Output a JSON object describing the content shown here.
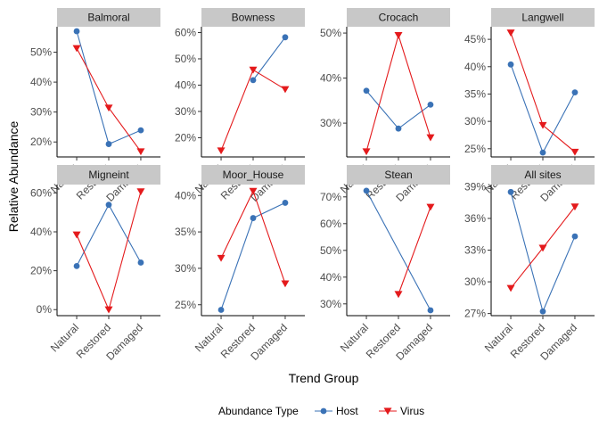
{
  "chart_data": {
    "type": "line",
    "layout": "facet grid, 2 rows x 4 columns, free y scales",
    "xlabel": "Trend Group",
    "ylabel": "Relative Abundance",
    "categories": [
      "Natural",
      "Restored",
      "Damaged"
    ],
    "legend": {
      "title": "Abundance Type",
      "position": "bottom",
      "entries": [
        {
          "name": "Host",
          "color": "#3a72b6",
          "marker": "circle"
        },
        {
          "name": "Virus",
          "color": "#e41a1c",
          "marker": "triangle-down"
        }
      ]
    },
    "facets": [
      {
        "title": "Balmoral",
        "ylim": [
          15,
          58.5
        ],
        "yticks": [
          20,
          30,
          40,
          50
        ],
        "ytick_labels": [
          "20%",
          "30%",
          "40%",
          "50%"
        ],
        "series": [
          {
            "name": "Host",
            "values": [
              57,
              19.3,
              23.9
            ]
          },
          {
            "name": "Virus",
            "values": [
              51.3,
              31.4,
              16.8
            ]
          }
        ]
      },
      {
        "title": "Bowness",
        "ylim": [
          12.7,
          62.2
        ],
        "yticks": [
          20,
          30,
          40,
          50,
          60
        ],
        "ytick_labels": [
          "20%",
          "30%",
          "40%",
          "50%",
          "60%"
        ],
        "series": [
          {
            "name": "Host",
            "values": [
              null,
              41.9,
              58.2
            ]
          },
          {
            "name": "Virus",
            "values": [
              15.1,
              45.8,
              38.4
            ]
          }
        ]
      },
      {
        "title": "Crocach",
        "ylim": [
          22.5,
          51.4
        ],
        "yticks": [
          30,
          40,
          50
        ],
        "ytick_labels": [
          "30%",
          "40%",
          "50%"
        ],
        "series": [
          {
            "name": "Host",
            "values": [
              37.2,
              28.8,
              34.1
            ]
          },
          {
            "name": "Virus",
            "values": [
              23.7,
              49.5,
              26.8
            ]
          }
        ]
      },
      {
        "title": "Langwell",
        "ylim": [
          23.5,
          47.3
        ],
        "yticks": [
          25,
          30,
          35,
          40,
          45
        ],
        "ytick_labels": [
          "25%",
          "30%",
          "35%",
          "40%",
          "45%"
        ],
        "series": [
          {
            "name": "Host",
            "values": [
              40.4,
              24.3,
              35.3
            ]
          },
          {
            "name": "Virus",
            "values": [
              46.2,
              29.3,
              24.4
            ]
          }
        ]
      },
      {
        "title": "Migneint",
        "ylim": [
          -3.1,
          64.3
        ],
        "yticks": [
          0,
          20,
          40,
          60
        ],
        "ytick_labels": [
          "0%",
          "20%",
          "40%",
          "60%"
        ],
        "series": [
          {
            "name": "Host",
            "values": [
              22.4,
              53.9,
              24.2
            ]
          },
          {
            "name": "Virus",
            "values": [
              38.5,
              0,
              60.7
            ]
          }
        ]
      },
      {
        "title": "Moor_House",
        "ylim": [
          23.5,
          41.5
        ],
        "yticks": [
          25,
          30,
          35,
          40
        ],
        "ytick_labels": [
          "25%",
          "30%",
          "35%",
          "40%"
        ],
        "series": [
          {
            "name": "Host",
            "values": [
              24.3,
              36.9,
              39
            ]
          },
          {
            "name": "Virus",
            "values": [
              31.4,
              40.6,
              27.9
            ]
          }
        ]
      },
      {
        "title": "Stean",
        "ylim": [
          25.6,
          74.6
        ],
        "yticks": [
          30,
          40,
          50,
          60,
          70
        ],
        "ytick_labels": [
          "30%",
          "40%",
          "50%",
          "60%",
          "70%"
        ],
        "series": [
          {
            "name": "Host",
            "values": [
              72.3,
              null,
              27.6
            ]
          },
          {
            "name": "Virus",
            "values": [
              null,
              33.6,
              66.2
            ]
          }
        ]
      },
      {
        "title": "All sites",
        "ylim": [
          26.8,
          39.2
        ],
        "yticks": [
          27,
          30,
          33,
          36,
          39
        ],
        "ytick_labels": [
          "27%",
          "30%",
          "33%",
          "36%",
          "39%"
        ],
        "series": [
          {
            "name": "Host",
            "values": [
              38.5,
              27.2,
              34.3
            ]
          },
          {
            "name": "Virus",
            "values": [
              29.4,
              33.2,
              37.1
            ]
          }
        ]
      }
    ]
  }
}
